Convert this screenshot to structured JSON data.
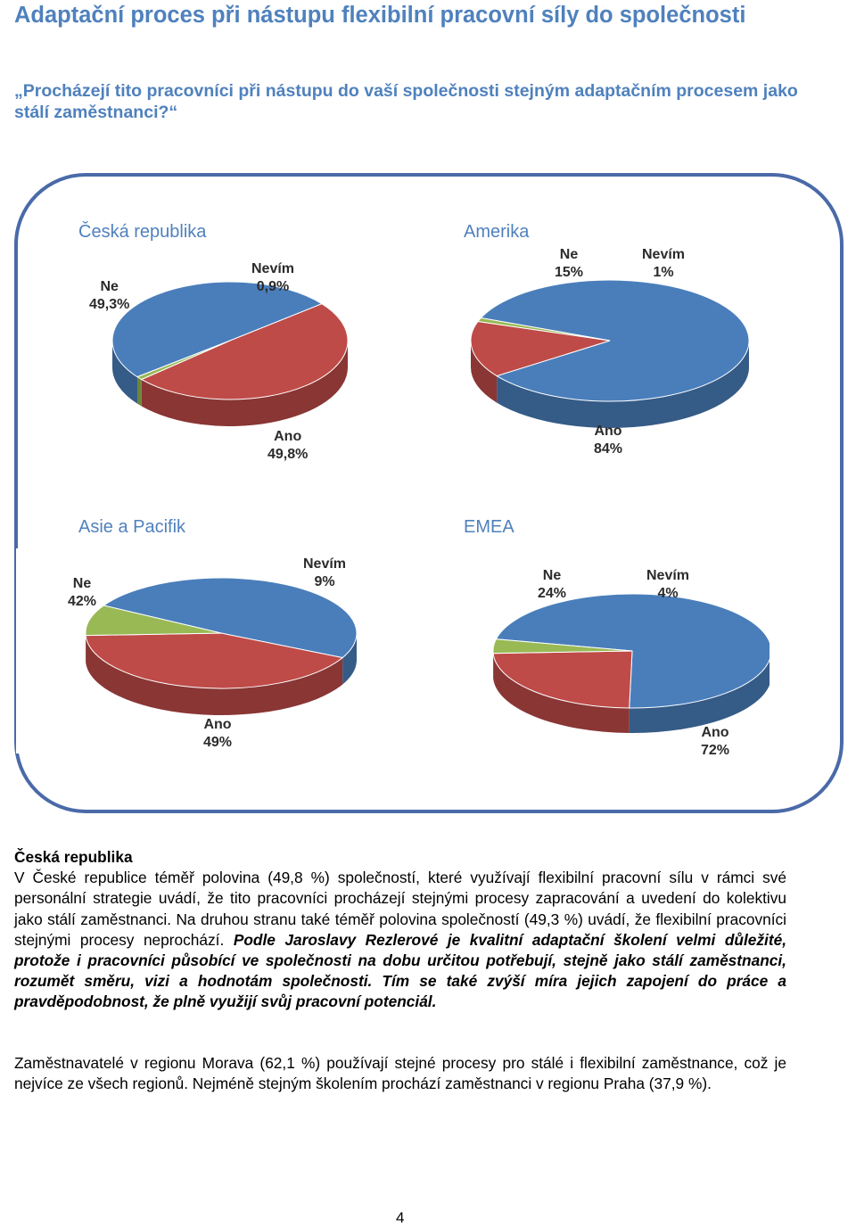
{
  "header": {
    "title": "Adaptační proces při nástupu flexibilní pracovní síly do společnosti",
    "question": "„Procházejí tito pracovníci při nástupu do vaší společnosti stejným adaptačním procesem jako stálí zaměstnanci?“"
  },
  "chart_data": [
    {
      "type": "pie",
      "title": "Česká republika",
      "categories": [
        "Ano",
        "Ne",
        "Nevím"
      ],
      "values": [
        49.8,
        49.3,
        0.9
      ],
      "labels": [
        "49,8%",
        "49,3%",
        "0,9%"
      ],
      "colors": [
        "#4a7ebb",
        "#be4b48",
        "#98b954"
      ]
    },
    {
      "type": "pie",
      "title": "Amerika",
      "categories": [
        "Ano",
        "Ne",
        "Nevím"
      ],
      "values": [
        84,
        15,
        1
      ],
      "labels": [
        "84%",
        "15%",
        "1%"
      ],
      "colors": [
        "#4a7ebb",
        "#be4b48",
        "#98b954"
      ]
    },
    {
      "type": "pie",
      "title": "Asie a Pacifik",
      "categories": [
        "Ano",
        "Ne",
        "Nevím"
      ],
      "values": [
        49,
        42,
        9
      ],
      "labels": [
        "49%",
        "42%",
        "9%"
      ],
      "colors": [
        "#4a7ebb",
        "#be4b48",
        "#98b954"
      ]
    },
    {
      "type": "pie",
      "title": "EMEA",
      "categories": [
        "Ano",
        "Ne",
        "Nevím"
      ],
      "values": [
        72,
        24,
        4
      ],
      "labels": [
        "72%",
        "24%",
        "4%"
      ],
      "colors": [
        "#4a7ebb",
        "#be4b48",
        "#98b954"
      ]
    }
  ],
  "body": {
    "section_heading": "Česká republika",
    "p1_normal": "V České republice téměř polovina (49,8 %) společností, které využívají flexibilní pracovní sílu v rámci své personální strategie uvádí, že tito pracovníci procházejí stejnými procesy zapracování a uvedení do kolektivu jako stálí zaměstnanci. Na druhou stranu také téměř polovina společností (49,3 %) uvádí, že flexibilní pracovníci stejnými procesy neprochází.",
    "p1_emphasis": "Podle Jaroslavy Rezlerové je kvalitní adaptační školení velmi důležité, protože i pracovníci působící ve společnosti na dobu určitou potřebují, stejně jako stálí zaměstnanci, rozumět směru, vizi a hodnotám společnosti. Tím se také zvýší míra jejich zapojení do práce a pravděpodobnost, že plně využijí svůj pracovní potenciál.",
    "p2": "Zaměstnavatelé v regionu Morava (62,1 %) používají stejné procesy pro stálé i flexibilní zaměstnance, což je nejvíce ze všech regionů. Nejméně stejným školením prochází zaměstnanci v regionu Praha (37,9 %)."
  },
  "footer": {
    "page_number": "4"
  }
}
